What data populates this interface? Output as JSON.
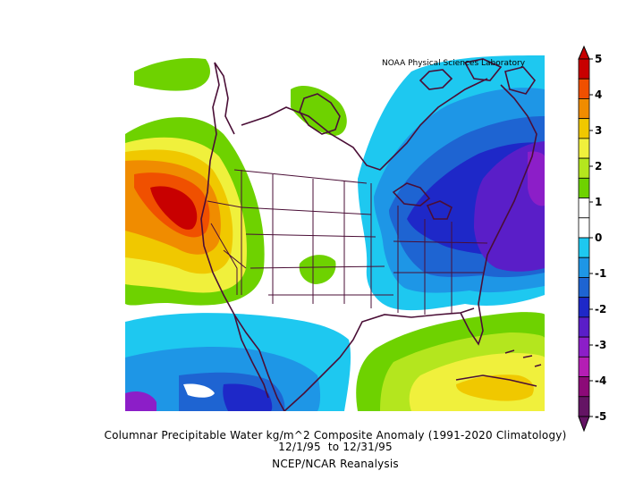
{
  "credit": "NOAA Physical Sciences Laboratory",
  "title_line1": "Columnar Precipitable Water kg/m^2 Composite Anomaly (1991-2020 Climatology)",
  "title_line2": "12/1/95  to 12/31/95",
  "title_line3": "NCEP/NCAR Reanalysis",
  "colorbar": {
    "labels": [
      "5",
      "4",
      "3",
      "2",
      "1",
      "0",
      "-1",
      "-2",
      "-3",
      "-4",
      "-5"
    ],
    "colors": [
      "#c80000",
      "#f05000",
      "#f08c00",
      "#f0c800",
      "#f0f03c",
      "#b4e61e",
      "#6ed200",
      "#ffffff",
      "#ffffff",
      "#1ec8f0",
      "#1e96e6",
      "#1e64d2",
      "#1e28c8",
      "#5a1ec8",
      "#8c1ec8",
      "#b41eb4",
      "#8c0a78",
      "#641464"
    ]
  }
}
